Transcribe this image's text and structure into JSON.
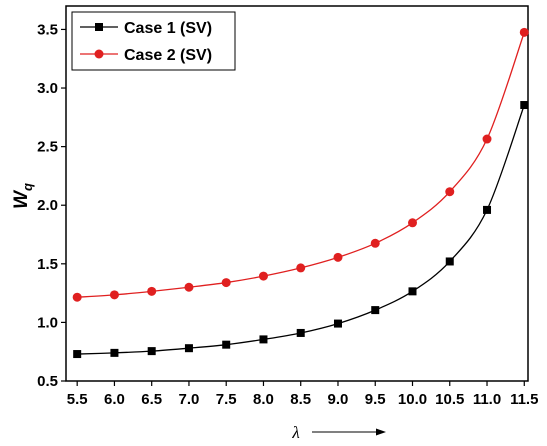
{
  "chart_data": {
    "type": "line",
    "xlabel": "λ",
    "ylabel": "W",
    "ylabel_sub": "q",
    "xlim": [
      5.35,
      11.55
    ],
    "ylim": [
      0.5,
      3.7
    ],
    "x_ticks": [
      "5.5",
      "6.0",
      "6.5",
      "7.0",
      "7.5",
      "8.0",
      "8.5",
      "9.0",
      "9.5",
      "10.0",
      "10.5",
      "11.0",
      "11.5"
    ],
    "y_ticks": [
      "0.5",
      "1.0",
      "1.5",
      "2.0",
      "2.5",
      "3.0",
      "3.5"
    ],
    "x": [
      5.5,
      6.0,
      6.5,
      7.0,
      7.5,
      8.0,
      8.5,
      9.0,
      9.5,
      10.0,
      10.5,
      11.0,
      11.5
    ],
    "series": [
      {
        "name": "Case 1 (SV)",
        "color": "#000000",
        "marker": "square",
        "values": [
          0.73,
          0.74,
          0.755,
          0.78,
          0.81,
          0.855,
          0.91,
          0.99,
          1.105,
          1.265,
          1.52,
          1.96,
          2.855
        ]
      },
      {
        "name": "Case 2 (SV)",
        "color": "#e02020",
        "marker": "circle",
        "values": [
          1.215,
          1.235,
          1.265,
          1.3,
          1.34,
          1.395,
          1.465,
          1.555,
          1.675,
          1.85,
          2.115,
          2.565,
          3.475
        ]
      }
    ],
    "legend_position": "top-left",
    "grid": false
  }
}
